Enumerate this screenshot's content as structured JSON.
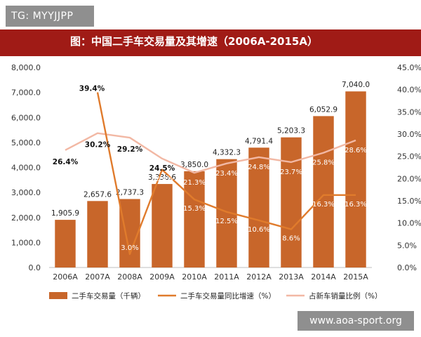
{
  "overlay": {
    "tag": "TG: MYYJJPP",
    "watermark": "www.aoa-sport.org"
  },
  "chart_data": {
    "type": "bar",
    "title": "图：中国二手车交易量及其增速（2006A-2015A）",
    "categories": [
      "2006A",
      "2007A",
      "2008A",
      "2009A",
      "2010A",
      "2011A",
      "2012A",
      "2013A",
      "2014A",
      "2015A"
    ],
    "series": [
      {
        "name": "二手车交易量（千辆）",
        "type": "bar",
        "axis": "left",
        "color": "#c8662a",
        "values": [
          1905.9,
          2657.6,
          2737.3,
          3338.6,
          3850.0,
          4332.3,
          4791.4,
          5203.3,
          6052.9,
          7040.0
        ],
        "labels": [
          "1,905.9",
          "2,657.6",
          "2,737.3",
          "3,338.6",
          "3,850.0",
          "4,332.3",
          "4,791.4",
          "5,203.3",
          "6,052.9",
          "7,040.0"
        ]
      },
      {
        "name": "二手车交易量同比增速（%）",
        "type": "line",
        "axis": "right",
        "color": "#e07b2c",
        "values": [
          null,
          39.4,
          3.0,
          22.0,
          15.3,
          12.5,
          10.6,
          8.6,
          16.3,
          16.3
        ],
        "labels": [
          "",
          "39.4%",
          "3.0%",
          "22.0%",
          "15.3%",
          "12.5%",
          "10.6%",
          "8.6%",
          "16.3%",
          "16.3%"
        ]
      },
      {
        "name": "占新车销量比例（%）",
        "type": "line",
        "axis": "right",
        "color": "#f2b8a4",
        "values": [
          26.4,
          30.2,
          29.2,
          24.5,
          21.3,
          23.4,
          24.8,
          23.7,
          25.8,
          28.6
        ],
        "labels": [
          "26.4%",
          "30.2%",
          "29.2%",
          "24.5%",
          "21.3%",
          "23.4%",
          "24.8%",
          "23.7%",
          "25.8%",
          "28.6%"
        ]
      }
    ],
    "y_left": {
      "min": 0,
      "max": 8000,
      "step": 1000,
      "ticks": [
        "0.0",
        "1,000.0",
        "2,000.0",
        "3,000.0",
        "4,000.0",
        "5,000.0",
        "6,000.0",
        "7,000.0",
        "8,000.0"
      ]
    },
    "y_right": {
      "min": 0,
      "max": 45,
      "step": 5,
      "ticks": [
        "0.0%",
        "5.0%",
        "10.0%",
        "15.0%",
        "20.0%",
        "25.0%",
        "30.0%",
        "35.0%",
        "40.0%",
        "45.0%"
      ]
    },
    "grid": false,
    "legend_position": "bottom"
  }
}
